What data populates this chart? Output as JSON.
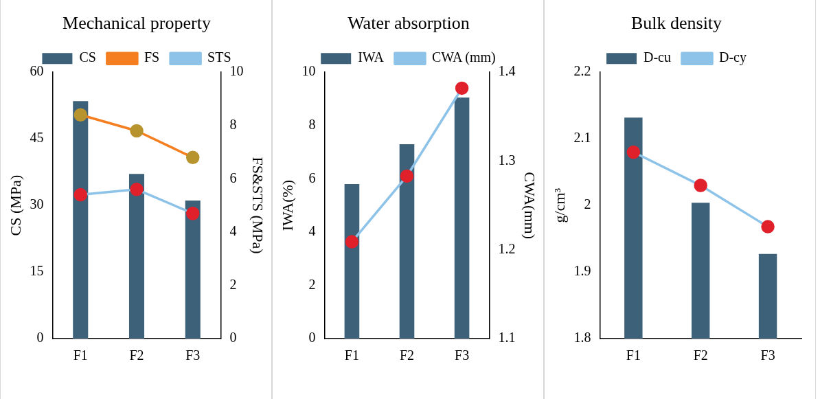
{
  "chart_data": [
    {
      "type": "bar",
      "title": "Mechanical property",
      "categories": [
        "F1",
        "F2",
        "F3"
      ],
      "ylabel": "CS (MPa)",
      "y2label": "FS&STS (MPa)",
      "ylim": [
        0,
        60
      ],
      "yticks": [
        0,
        15,
        30,
        45,
        60
      ],
      "y2lim": [
        0,
        10
      ],
      "y2ticks": [
        0,
        2,
        4,
        6,
        8,
        10
      ],
      "legend": "top",
      "marker": "circle",
      "grid": false,
      "series": [
        {
          "name": "CS",
          "color": "#3d6179",
          "values": [
            53.5,
            37.1,
            31.1
          ]
        },
        {
          "name": "FS",
          "type": "line",
          "axis": "y2",
          "color": "#f57f20",
          "colors": [
            "#b8942e",
            "#b8942e",
            "#b8942e"
          ],
          "values": [
            8.4,
            7.8,
            6.8
          ]
        },
        {
          "name": "STS",
          "type": "line",
          "axis": "y2",
          "color": "#8dc3e8",
          "colors": [
            "#e0202a",
            "#e0202a",
            "#e0202a"
          ],
          "values": [
            5.4,
            5.6,
            4.7
          ]
        }
      ]
    },
    {
      "type": "bar",
      "title": "Water absorption",
      "categories": [
        "F1",
        "F2",
        "F3"
      ],
      "ylabel": "IWA(%)",
      "y2label": "CWA(mm)",
      "ylim": [
        0,
        10
      ],
      "yticks": [
        0,
        2,
        4,
        6,
        8,
        10
      ],
      "y2lim": [
        1.1,
        1.4
      ],
      "y2ticks": [
        1.1,
        1.2,
        1.3,
        1.4
      ],
      "legend": "top",
      "marker": "circle",
      "grid": false,
      "series": [
        {
          "name": "IWA",
          "color": "#3d6179",
          "values": [
            5.8,
            7.3,
            9.05
          ]
        },
        {
          "name": "CWA (mm)",
          "type": "line",
          "axis": "y2",
          "color": "#8dc3e8",
          "colors": [
            "#e0202a",
            "#e0202a",
            "#e0202a"
          ],
          "values": [
            1.209,
            1.283,
            1.382
          ]
        }
      ]
    },
    {
      "type": "bar",
      "title": "Bulk density",
      "categories": [
        "F1",
        "F2",
        "F3"
      ],
      "ylabel": "g/cm³",
      "ylim": [
        1.8,
        2.2
      ],
      "yticks": [
        1.8,
        1.9,
        2,
        2.1,
        2.2
      ],
      "legend": "top",
      "marker": "circle",
      "grid": false,
      "series": [
        {
          "name": "D-cu",
          "color": "#3d6179",
          "values": [
            2.132,
            2.004,
            1.927
          ]
        },
        {
          "name": "D-cy",
          "type": "line",
          "color": "#8dc3e8",
          "colors": [
            "#e0202a",
            "#e0202a",
            "#e0202a"
          ],
          "values": [
            2.08,
            2.03,
            1.968
          ]
        }
      ]
    }
  ]
}
